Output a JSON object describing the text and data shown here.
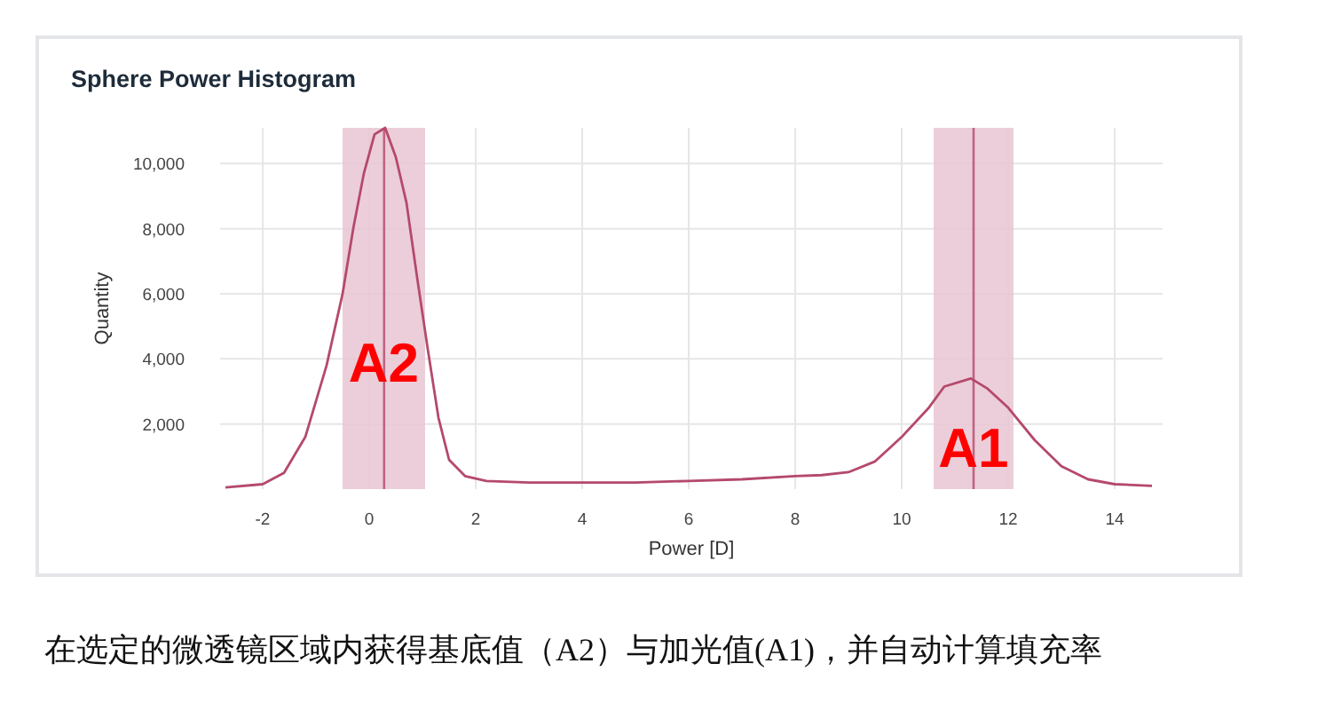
{
  "chart_data": {
    "type": "line",
    "title": "Sphere Power Histogram",
    "xlabel": "Power [D]",
    "ylabel": "Quantity",
    "x": [
      -2.7,
      -2,
      -1.6,
      -1.2,
      -0.8,
      -0.5,
      -0.3,
      -0.1,
      0.1,
      0.3,
      0.5,
      0.7,
      0.9,
      1.1,
      1.3,
      1.5,
      1.8,
      2.2,
      3,
      4,
      5,
      6,
      7,
      8,
      8.5,
      9,
      9.5,
      10,
      10.5,
      10.8,
      11.3,
      11.6,
      12,
      12.5,
      13,
      13.5,
      14,
      14.7
    ],
    "series": [
      {
        "color": "#b5496b",
        "values": [
          50,
          150,
          500,
          1600,
          3800,
          6000,
          8000,
          9700,
          10900,
          11100,
          10200,
          8800,
          6500,
          4300,
          2200,
          900,
          400,
          250,
          200,
          200,
          200,
          250,
          300,
          400,
          430,
          520,
          850,
          1600,
          2480,
          3150,
          3400,
          3100,
          2500,
          1500,
          700,
          300,
          150,
          100
        ]
      }
    ],
    "xlim": [
      -2.8,
      14.9
    ],
    "xticks": [
      -2,
      0,
      2,
      4,
      6,
      8,
      10,
      12,
      14
    ],
    "ylim": [
      0,
      11100
    ],
    "yticks": [
      {
        "value": 2000,
        "label": "2,000"
      },
      {
        "value": 4000,
        "label": "4,000"
      },
      {
        "value": 6000,
        "label": "6,000"
      },
      {
        "value": 8000,
        "label": "8,000"
      },
      {
        "value": 10000,
        "label": "10,000"
      }
    ],
    "grid": true,
    "marker": "none",
    "line_style": "solid",
    "bands": [
      {
        "axis": "x",
        "from": -0.5,
        "to": 1.05,
        "label": "A2",
        "color": "#e8c5d2"
      },
      {
        "axis": "x",
        "from": 10.6,
        "to": 12.1,
        "label": "A1",
        "color": "#e8c5d2"
      }
    ],
    "ref_lines": [
      {
        "axis": "x",
        "value": 0.28,
        "color": "#b5496b"
      },
      {
        "axis": "x",
        "value": 11.35,
        "color": "#b5496b"
      }
    ],
    "annotations": [
      "在选定的微透镜区域内获得基底值（A2）与加光值(A1)，并自动计算填充率"
    ]
  }
}
